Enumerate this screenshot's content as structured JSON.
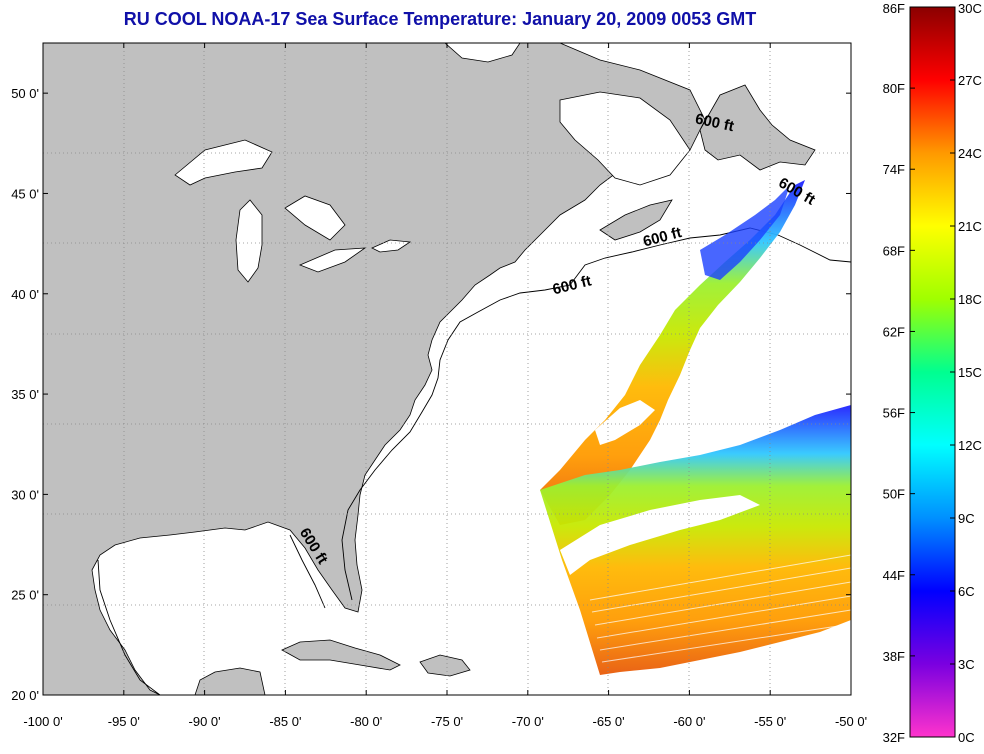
{
  "title": "RU COOL  NOAA-17  Sea Surface Temperature:  January 20, 2009 0053 GMT",
  "map": {
    "lon_range": [
      -100,
      -50
    ],
    "lat_range": [
      20,
      52.5
    ],
    "x_ticks": [
      -100,
      -95,
      -90,
      -85,
      -80,
      -75,
      -70,
      -65,
      -60,
      -55,
      -50
    ],
    "x_tick_labels": [
      "-100 0'",
      "-95 0'",
      "-90 0'",
      "-85 0'",
      "-80 0'",
      "-75 0'",
      "-70 0'",
      "-65 0'",
      "-60 0'",
      "-55 0'",
      "-50 0'"
    ],
    "y_ticks": [
      20,
      25,
      30,
      35,
      40,
      45,
      50
    ],
    "y_tick_labels": [
      "20 0'",
      "25 0'",
      "30 0'",
      "35 0'",
      "40 0'",
      "45 0'",
      "50 0'"
    ],
    "grid": "dotted",
    "land_color": "#c0c0c0",
    "contour_label": "600 ft",
    "contour_labels": [
      {
        "lon": -58.5,
        "lat": 48.3,
        "rotate": 12
      },
      {
        "lon": -53.5,
        "lat": 44.9,
        "rotate": 30
      },
      {
        "lon": -61.6,
        "lat": 42.6,
        "rotate": -15
      },
      {
        "lon": -67.2,
        "lat": 40.2,
        "rotate": -14
      },
      {
        "lon": -83.5,
        "lat": 27.3,
        "rotate": 58
      }
    ]
  },
  "colorbar": {
    "fahrenheit_labels": [
      "86F",
      "80F",
      "74F",
      "68F",
      "62F",
      "56F",
      "50F",
      "44F",
      "38F",
      "32F"
    ],
    "celsius_labels": [
      "30C",
      "27C",
      "24C",
      "21C",
      "18C",
      "15C",
      "12C",
      "9C",
      "6C",
      "3C",
      "0C"
    ],
    "range_c": [
      0,
      30
    ],
    "colors": {
      "c0": "#ff33cc",
      "c3": "#7a00e0",
      "c6": "#0000ff",
      "c9": "#0090ff",
      "c12": "#00ffff",
      "c15": "#00ff90",
      "c18": "#a0ff00",
      "c21": "#ffff00",
      "c24": "#ff9900",
      "c27": "#ff0000",
      "c30": "#8b0000"
    }
  }
}
